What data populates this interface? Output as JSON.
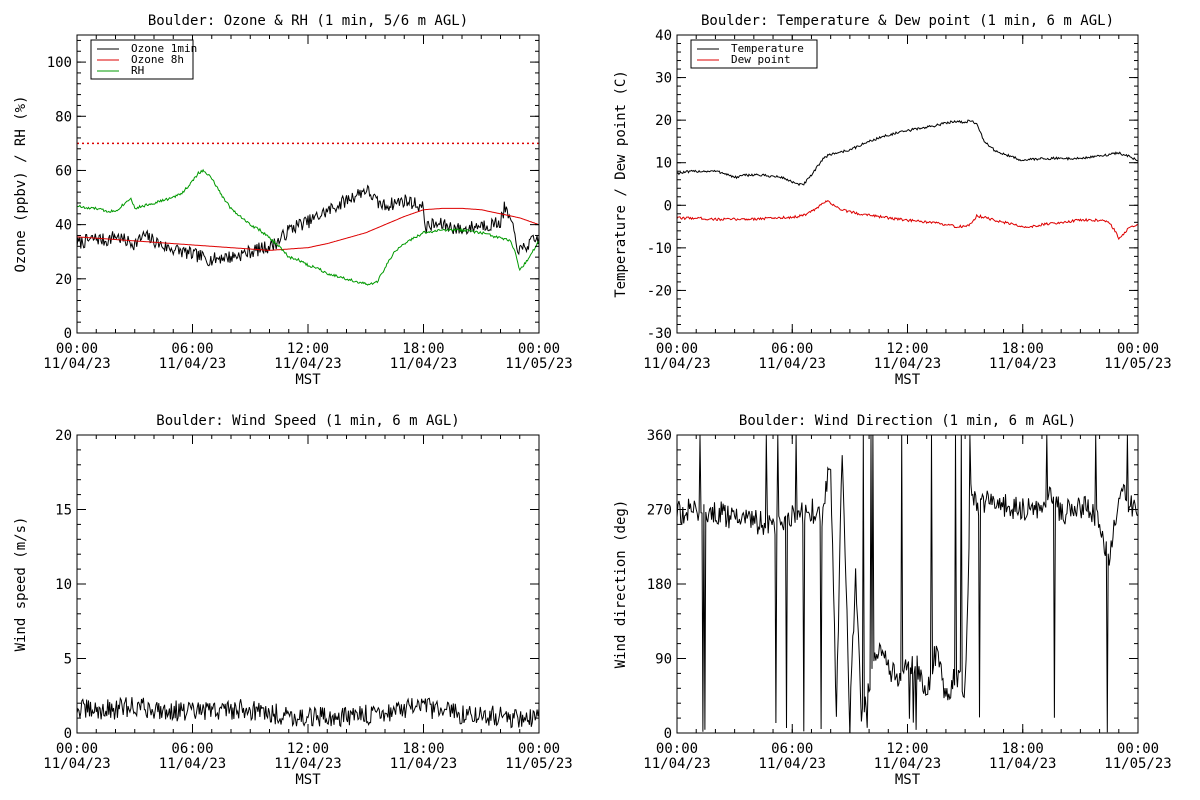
{
  "chart_data": [
    {
      "id": "ozone_rh",
      "type": "line",
      "title": "Boulder: Ozone & RH (1 min, 5/6 m AGL)",
      "xlabel": "MST",
      "ylabel": "Ozone (ppbv) / RH (%)",
      "xlim": [
        0,
        24
      ],
      "ylim": [
        0,
        110
      ],
      "yticks": [
        0,
        20,
        40,
        60,
        80,
        100
      ],
      "xtick_labels": [
        {
          "time": "00:00",
          "date": "11/04/23"
        },
        {
          "time": "06:00",
          "date": "11/04/23"
        },
        {
          "time": "12:00",
          "date": "11/04/23"
        },
        {
          "time": "18:00",
          "date": "11/04/23"
        },
        {
          "time": "00:00",
          "date": "11/05/23"
        }
      ],
      "legend": {
        "position": "top-left",
        "boxed": true
      },
      "reference_line": {
        "y": 70,
        "color": "#dd0000",
        "style": "dotted"
      },
      "series": [
        {
          "name": "Ozone 1min",
          "color": "#000000",
          "noise": 2.5,
          "x": [
            0,
            0.5,
            1,
            1.5,
            2,
            2.5,
            3,
            3.5,
            4,
            4.5,
            5,
            5.5,
            6,
            6.5,
            7,
            7.5,
            8,
            8.5,
            9,
            9.5,
            10,
            10.5,
            11,
            11.5,
            12,
            12.5,
            13,
            13.5,
            14,
            14.5,
            15,
            15.3,
            15.6,
            16,
            16.5,
            17,
            17.5,
            18,
            18.1,
            18.5,
            19,
            19.5,
            20,
            20.5,
            21,
            21.5,
            22,
            22.2,
            22.5,
            22.8,
            23,
            23.5,
            24
          ],
          "y": [
            33,
            34,
            35,
            34,
            36,
            34,
            33,
            36,
            34,
            32,
            31,
            30,
            29,
            28,
            27,
            28,
            28,
            29,
            30,
            31,
            32,
            34,
            38,
            40,
            41,
            43,
            45,
            47,
            49,
            51,
            53,
            51,
            48,
            47,
            48,
            49,
            48,
            46,
            39,
            40,
            40,
            39,
            38,
            39,
            40,
            40,
            41,
            46,
            42,
            34,
            30,
            33,
            35
          ]
        },
        {
          "name": "Ozone 8h",
          "color": "#dd0000",
          "noise": 0,
          "x": [
            0,
            1,
            2,
            3,
            4,
            5,
            6,
            7,
            8,
            9,
            10,
            11,
            12,
            13,
            14,
            15,
            16,
            17,
            18,
            19,
            20,
            21,
            22,
            23,
            24
          ],
          "y": [
            35.5,
            35,
            34.5,
            34,
            33.5,
            33,
            32.5,
            32,
            31.5,
            31,
            30.5,
            31,
            31.5,
            33,
            35,
            37,
            40,
            43,
            45.5,
            46,
            46,
            45.5,
            44,
            42.5,
            40
          ]
        },
        {
          "name": "RH",
          "color": "#009900",
          "noise": 0.5,
          "x": [
            0,
            0.5,
            1,
            1.5,
            2,
            2.5,
            2.8,
            3,
            3.5,
            4,
            4.5,
            5,
            5.5,
            6,
            6.3,
            6.6,
            7,
            7.5,
            8,
            8.5,
            9,
            9.5,
            10,
            10.5,
            11,
            11.5,
            12,
            12.5,
            13,
            13.5,
            14,
            14.5,
            15,
            15.3,
            15.6,
            16,
            16.5,
            17,
            17.5,
            18,
            19,
            20,
            21,
            22,
            22.5,
            22.8,
            23,
            23.5,
            24
          ],
          "y": [
            47,
            46,
            46,
            45,
            45,
            48,
            50,
            46,
            47,
            48,
            49,
            50,
            52,
            56,
            59,
            60,
            57,
            51,
            46,
            43,
            40,
            38,
            35,
            32,
            28,
            27,
            25,
            24,
            22,
            21,
            20,
            19,
            18,
            18,
            19,
            24,
            30,
            33,
            35,
            37,
            38,
            38,
            37,
            35,
            34,
            29,
            23,
            28,
            34
          ]
        }
      ]
    },
    {
      "id": "temp_dew",
      "type": "line",
      "title": "Boulder: Temperature & Dew point (1 min, 6 m AGL)",
      "xlabel": "MST",
      "ylabel": "Temperature / Dew point (C)",
      "xlim": [
        0,
        24
      ],
      "ylim": [
        -30,
        40
      ],
      "yticks": [
        -30,
        -20,
        -10,
        0,
        10,
        20,
        30,
        40
      ],
      "xtick_labels": [
        {
          "time": "00:00",
          "date": "11/04/23"
        },
        {
          "time": "06:00",
          "date": "11/04/23"
        },
        {
          "time": "12:00",
          "date": "11/04/23"
        },
        {
          "time": "18:00",
          "date": "11/04/23"
        },
        {
          "time": "00:00",
          "date": "11/05/23"
        }
      ],
      "legend": {
        "position": "top-left",
        "boxed": true
      },
      "series": [
        {
          "name": "Temperature",
          "color": "#000000",
          "noise": 0.3,
          "x": [
            0,
            0.5,
            1,
            1.5,
            2,
            2.5,
            3,
            3.5,
            4,
            4.5,
            5,
            5.5,
            6,
            6.3,
            6.6,
            7,
            7.3,
            7.6,
            8,
            8.5,
            9,
            9.5,
            10,
            10.5,
            11,
            11.5,
            12,
            12.5,
            13,
            13.5,
            14,
            14.5,
            15,
            15.3,
            15.6,
            16,
            16.5,
            17,
            17.5,
            18,
            18.5,
            19,
            19.5,
            20,
            20.5,
            21,
            21.5,
            22,
            22.5,
            23,
            23.5,
            24
          ],
          "y": [
            7.5,
            7.8,
            8,
            8,
            8,
            7.5,
            6.5,
            7,
            7.2,
            7,
            6.8,
            6.5,
            5.5,
            4.8,
            5,
            7,
            9,
            11,
            12,
            12.5,
            13,
            14,
            15,
            15.8,
            16.5,
            17,
            17.5,
            18,
            18.3,
            18.8,
            19.3,
            19.8,
            19.5,
            20,
            19,
            15,
            13,
            12,
            11.3,
            10.5,
            10.8,
            11,
            11,
            11,
            11,
            11,
            11.3,
            11.5,
            12,
            12.3,
            11.5,
            10.5
          ]
        },
        {
          "name": "Dew point",
          "color": "#dd0000",
          "noise": 0.3,
          "x": [
            0,
            1,
            2,
            3,
            4,
            5,
            6,
            6.5,
            7,
            7.5,
            7.8,
            8.2,
            8.5,
            9,
            9.5,
            10,
            11,
            12,
            13,
            14,
            14.5,
            15,
            15.3,
            15.6,
            16,
            16.5,
            17,
            17.5,
            18,
            18.5,
            19,
            20,
            21,
            22,
            22.5,
            22.8,
            23,
            23.5,
            24
          ],
          "y": [
            -3,
            -3,
            -3.3,
            -3.3,
            -3.2,
            -3,
            -2.8,
            -2.5,
            -1.5,
            0,
            1,
            0,
            -1,
            -1.5,
            -2,
            -2.2,
            -3,
            -3.5,
            -4,
            -4.5,
            -5,
            -5,
            -4.5,
            -2.5,
            -2.8,
            -3.5,
            -4,
            -4.5,
            -5,
            -5,
            -4.5,
            -4,
            -3.5,
            -3.5,
            -4,
            -6,
            -8,
            -5.5,
            -4.5
          ]
        }
      ]
    },
    {
      "id": "wind_speed",
      "type": "line",
      "title": "Boulder: Wind Speed (1 min, 6 m AGL)",
      "xlabel": "MST",
      "ylabel": "Wind speed (m/s)",
      "xlim": [
        0,
        24
      ],
      "ylim": [
        0,
        20
      ],
      "yticks": [
        0,
        5,
        10,
        15,
        20
      ],
      "xtick_labels": [
        {
          "time": "00:00",
          "date": "11/04/23"
        },
        {
          "time": "06:00",
          "date": "11/04/23"
        },
        {
          "time": "12:00",
          "date": "11/04/23"
        },
        {
          "time": "18:00",
          "date": "11/04/23"
        },
        {
          "time": "00:00",
          "date": "11/05/23"
        }
      ],
      "series": [
        {
          "name": "",
          "color": "#000000",
          "noise": 0.7,
          "x": [
            0,
            1,
            2,
            3,
            4,
            5,
            6,
            7,
            8,
            9,
            10,
            11,
            12,
            13,
            14,
            15,
            16,
            17,
            18,
            19,
            20,
            21,
            22,
            23,
            24
          ],
          "y": [
            1.6,
            1.5,
            1.6,
            1.8,
            1.6,
            1.5,
            1.4,
            1.5,
            1.6,
            1.6,
            1.3,
            1.2,
            1.0,
            1.1,
            1.1,
            1.2,
            1.4,
            1.6,
            1.7,
            1.5,
            1.3,
            1.2,
            1.1,
            1.0,
            1.0
          ]
        }
      ]
    },
    {
      "id": "wind_dir",
      "type": "line",
      "title": "Boulder: Wind Direction (1 min, 6 m AGL)",
      "xlabel": "MST",
      "ylabel": "Wind direction (deg)",
      "xlim": [
        0,
        24
      ],
      "ylim": [
        0,
        360
      ],
      "yticks": [
        0,
        90,
        180,
        270,
        360
      ],
      "xtick_labels": [
        {
          "time": "00:00",
          "date": "11/04/23"
        },
        {
          "time": "06:00",
          "date": "11/04/23"
        },
        {
          "time": "12:00",
          "date": "11/04/23"
        },
        {
          "time": "18:00",
          "date": "11/04/23"
        },
        {
          "time": "00:00",
          "date": "11/05/23"
        }
      ],
      "series": [
        {
          "name": "",
          "color": "#000000",
          "noise": 15,
          "x": [
            0,
            1,
            2,
            3,
            4,
            5,
            6,
            7,
            7.5,
            8,
            8.3,
            8.6,
            9,
            9.3,
            9.6,
            10,
            10.5,
            11,
            11.5,
            12,
            12.5,
            13,
            13.5,
            14,
            14.5,
            15,
            15.3,
            15.6,
            16,
            17,
            18,
            19,
            19.5,
            20,
            20.5,
            21,
            21.5,
            22,
            22.5,
            23,
            23.5,
            24
          ],
          "y": [
            265,
            270,
            268,
            260,
            255,
            250,
            262,
            270,
            255,
            330,
            20,
            350,
            10,
            200,
            15,
            60,
            100,
            80,
            60,
            90,
            80,
            50,
            100,
            40,
            70,
            50,
            300,
            270,
            280,
            275,
            270,
            275,
            290,
            265,
            270,
            275,
            270,
            260,
            200,
            290,
            280,
            270
          ]
        }
      ]
    }
  ]
}
